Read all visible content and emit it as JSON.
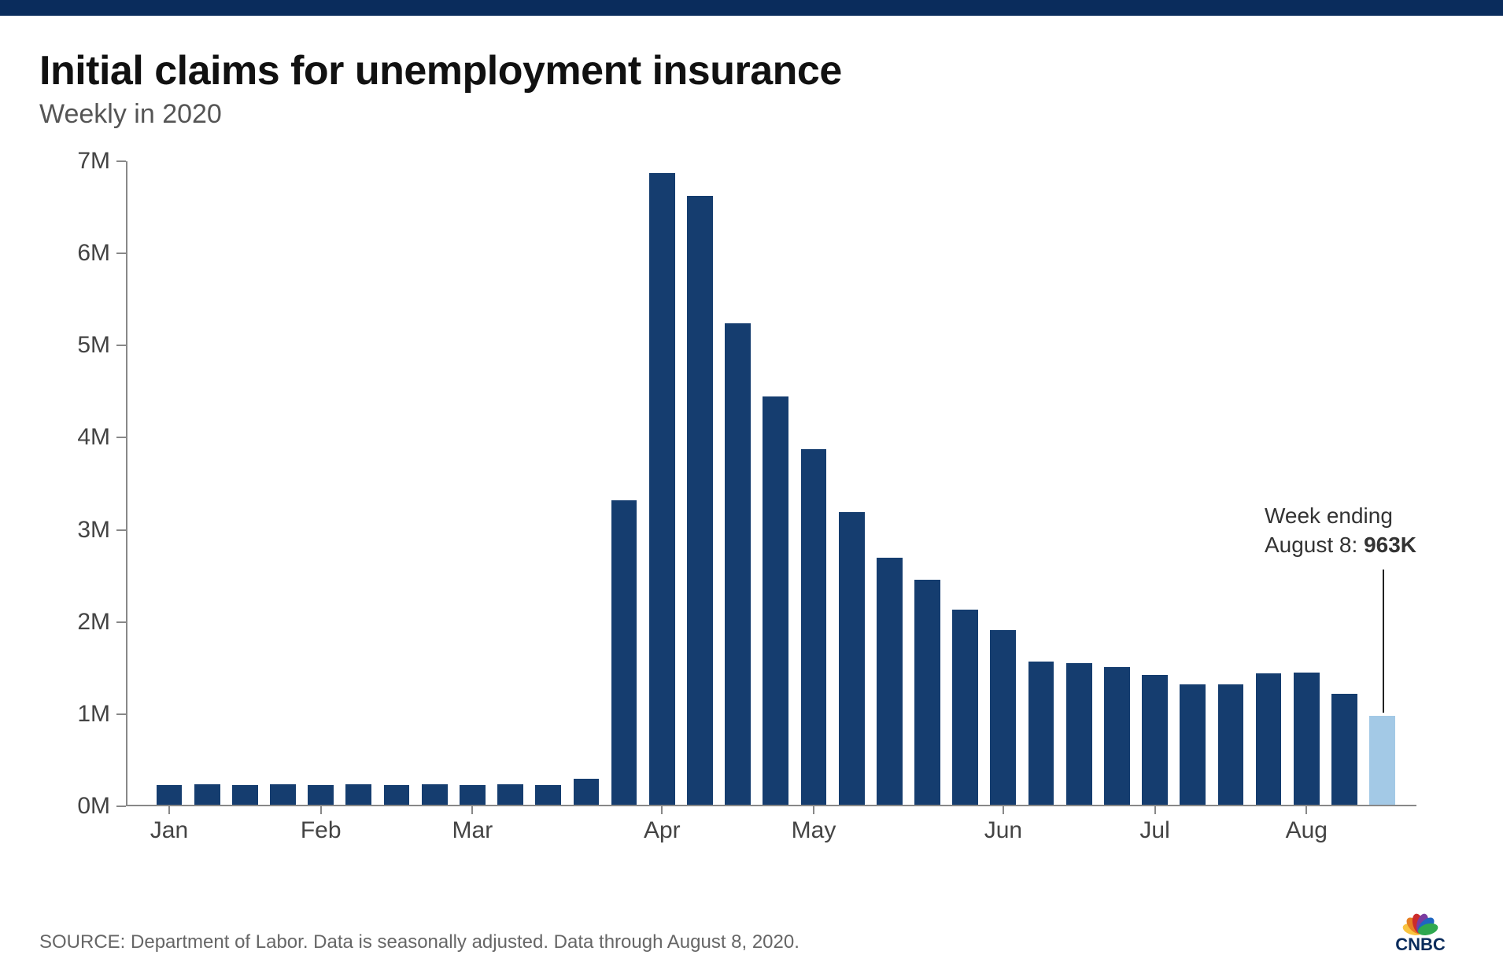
{
  "top_bar_color": "#0a2c5c",
  "header": {
    "title": "Initial claims for unemployment insurance",
    "subtitle": "Weekly in 2020",
    "title_color": "#111111",
    "subtitle_color": "#555555",
    "title_fontsize": 52,
    "subtitle_fontsize": 34
  },
  "chart": {
    "type": "bar",
    "y_axis": {
      "min": 0,
      "max": 7,
      "unit_suffix": "M",
      "ticks": [
        0,
        1,
        2,
        3,
        4,
        5,
        6,
        7
      ],
      "label_fontsize": 30,
      "label_color": "#444444"
    },
    "x_axis": {
      "month_labels": [
        "Jan",
        "Feb",
        "Mar",
        "Apr",
        "May",
        "Jun",
        "Jul",
        "Aug"
      ],
      "month_start_indices": [
        0,
        4,
        8,
        13,
        17,
        22,
        26,
        30
      ],
      "label_fontsize": 30,
      "label_color": "#444444"
    },
    "bars": {
      "count": 32,
      "values": [
        0.21,
        0.22,
        0.21,
        0.22,
        0.21,
        0.22,
        0.21,
        0.22,
        0.21,
        0.22,
        0.21,
        0.28,
        3.31,
        6.87,
        6.62,
        5.24,
        4.44,
        3.87,
        3.18,
        2.69,
        2.45,
        2.12,
        1.9,
        1.56,
        1.54,
        1.5,
        1.41,
        1.31,
        1.31,
        1.43,
        1.44,
        1.21
      ],
      "highlight_value": 0.963,
      "bar_color": "#153d6f",
      "highlight_color": "#a3c9e6",
      "bar_width_ratio": 0.68,
      "gap_ratio": 0.32,
      "left_padding_bars": 0.6
    },
    "axis_line_color": "#888888",
    "annotation": {
      "line1": "Week ending",
      "line2_prefix": "August 8: ",
      "line2_value": "963K",
      "text_color": "#333333",
      "fontsize": 28
    }
  },
  "source": {
    "text": "SOURCE: Department of Labor. Data is seasonally adjusted. Data through August 8, 2020.",
    "color": "#666666",
    "fontsize": 24
  },
  "logo": {
    "name": "CNBC",
    "text_color": "#0a2c5c",
    "feather_colors": [
      "#f9c440",
      "#e67e22",
      "#cc2b2b",
      "#7b3ca0",
      "#1f66c1",
      "#2fa84f"
    ]
  }
}
